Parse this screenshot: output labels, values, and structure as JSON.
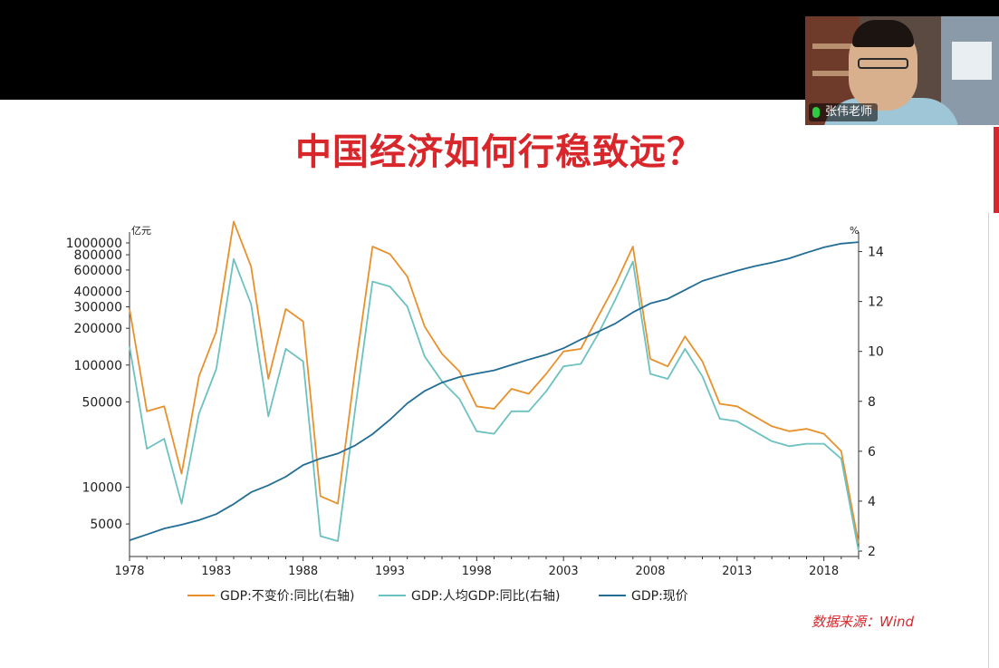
{
  "slide": {
    "title": "中国经济如何行稳致远？",
    "source": "数据来源：Wind"
  },
  "video": {
    "name": "张伟老师"
  },
  "colors": {
    "title": "#d9262b",
    "gdp_constant": "#e8912c",
    "gdp_per_capita": "#6cc2c0",
    "gdp_current": "#236d95"
  },
  "chart_data": {
    "type": "line",
    "xlabel": "",
    "ylabel_left": "亿元",
    "ylabel_right": "%",
    "left_axis_scale": "log",
    "left_ylim": [
      3000,
      1000000
    ],
    "right_ylim": [
      2,
      15
    ],
    "xlim": [
      1978,
      2020
    ],
    "x_ticks": [
      1978,
      1983,
      1988,
      1993,
      1998,
      2003,
      2008,
      2013,
      2018
    ],
    "left_ticks": [
      5000,
      10000,
      50000,
      100000,
      200000,
      300000,
      400000,
      600000,
      800000,
      1000000
    ],
    "right_ticks": [
      2,
      4,
      6,
      8,
      10,
      12,
      14
    ],
    "grid": false,
    "legend": "bottom",
    "x": [
      1978,
      1979,
      1980,
      1981,
      1982,
      1983,
      1984,
      1985,
      1986,
      1987,
      1988,
      1989,
      1990,
      1991,
      1992,
      1993,
      1994,
      1995,
      1996,
      1997,
      1998,
      1999,
      2000,
      2001,
      2002,
      2003,
      2004,
      2005,
      2006,
      2007,
      2008,
      2009,
      2010,
      2011,
      2012,
      2013,
      2014,
      2015,
      2016,
      2017,
      2018,
      2019,
      2020
    ],
    "series": [
      {
        "name": "GDP:不变价:同比(右轴)",
        "axis": "right",
        "values": [
          11.7,
          7.6,
          7.8,
          5.1,
          9.0,
          10.8,
          15.2,
          13.4,
          8.9,
          11.7,
          11.2,
          4.2,
          3.9,
          9.3,
          14.2,
          13.9,
          13.0,
          11.0,
          9.9,
          9.2,
          7.8,
          7.7,
          8.5,
          8.3,
          9.1,
          10.0,
          10.1,
          11.4,
          12.7,
          14.2,
          9.7,
          9.4,
          10.6,
          9.6,
          7.9,
          7.8,
          7.4,
          7.0,
          6.8,
          6.9,
          6.7,
          6.0,
          2.3
        ]
      },
      {
        "name": "GDP:人均GDP:同比(右轴)",
        "axis": "right",
        "values": [
          10.2,
          6.1,
          6.5,
          3.9,
          7.5,
          9.3,
          13.7,
          11.9,
          7.4,
          10.1,
          9.6,
          2.6,
          2.4,
          7.7,
          12.8,
          12.6,
          11.8,
          9.8,
          8.8,
          8.1,
          6.8,
          6.7,
          7.6,
          7.6,
          8.4,
          9.4,
          9.5,
          10.7,
          12.1,
          13.6,
          9.1,
          8.9,
          10.1,
          9.0,
          7.3,
          7.2,
          6.8,
          6.4,
          6.2,
          6.3,
          6.3,
          5.7,
          2.0
        ]
      },
      {
        "name": "GDP:现价",
        "axis": "left",
        "values": [
          3679,
          4101,
          4588,
          4936,
          5373,
          6021,
          7279,
          9099,
          10376,
          12175,
          15180,
          17180,
          18873,
          22006,
          27195,
          35673,
          48638,
          61340,
          71814,
          79715,
          85196,
          90564,
          100280,
          110863,
          121717,
          137422,
          161840,
          187319,
          219439,
          270092,
          319245,
          348518,
          412119,
          487940,
          538580,
          592963,
          643563,
          688858,
          746395,
          832036,
          919281,
          986515,
          1015986
        ]
      }
    ]
  }
}
